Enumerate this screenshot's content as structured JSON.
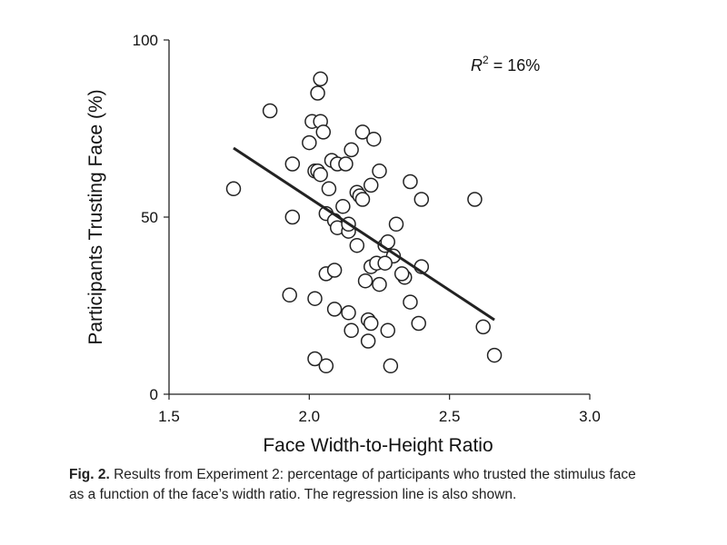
{
  "chart_data": {
    "type": "scatter",
    "xlabel": "Face Width-to-Height Ratio",
    "ylabel": "Participants Trusting Face (%)",
    "xlim": [
      1.5,
      3.0
    ],
    "ylim": [
      0,
      100
    ],
    "xticks": [
      "1.5",
      "2.0",
      "2.5",
      "3.0"
    ],
    "xtick_values": [
      1.5,
      2.0,
      2.5,
      3.0
    ],
    "yticks": [
      "0",
      "50",
      "100"
    ],
    "ytick_values": [
      0,
      50,
      100
    ],
    "annotation": {
      "prefix": "R",
      "sup": "2",
      "suffix": " = 16%"
    },
    "regression": {
      "x": [
        1.73,
        2.66
      ],
      "y": [
        69.5,
        21.0
      ]
    },
    "points": [
      [
        1.73,
        58
      ],
      [
        1.86,
        80
      ],
      [
        1.94,
        65
      ],
      [
        1.94,
        50
      ],
      [
        1.93,
        28
      ],
      [
        2.0,
        71
      ],
      [
        2.01,
        77
      ],
      [
        2.02,
        63
      ],
      [
        2.03,
        85
      ],
      [
        2.04,
        89
      ],
      [
        2.04,
        77
      ],
      [
        2.05,
        74
      ],
      [
        2.03,
        63
      ],
      [
        2.04,
        62
      ],
      [
        2.07,
        58
      ],
      [
        2.08,
        66
      ],
      [
        2.1,
        65
      ],
      [
        2.13,
        65
      ],
      [
        2.15,
        69
      ],
      [
        2.19,
        74
      ],
      [
        2.23,
        72
      ],
      [
        2.25,
        63
      ],
      [
        2.17,
        57
      ],
      [
        2.18,
        56
      ],
      [
        2.19,
        55
      ],
      [
        2.22,
        59
      ],
      [
        2.36,
        60
      ],
      [
        2.4,
        55
      ],
      [
        2.59,
        55
      ],
      [
        2.06,
        51
      ],
      [
        2.09,
        49
      ],
      [
        2.1,
        47
      ],
      [
        2.12,
        53
      ],
      [
        2.14,
        46
      ],
      [
        2.14,
        48
      ],
      [
        2.17,
        42
      ],
      [
        2.27,
        42
      ],
      [
        2.28,
        43
      ],
      [
        2.3,
        39
      ],
      [
        2.31,
        48
      ],
      [
        2.22,
        36
      ],
      [
        2.24,
        37
      ],
      [
        2.27,
        37
      ],
      [
        2.34,
        33
      ],
      [
        2.33,
        34
      ],
      [
        2.4,
        36
      ],
      [
        2.06,
        34
      ],
      [
        2.09,
        35
      ],
      [
        2.2,
        32
      ],
      [
        2.25,
        31
      ],
      [
        2.02,
        27
      ],
      [
        2.09,
        24
      ],
      [
        2.14,
        23
      ],
      [
        2.15,
        18
      ],
      [
        2.21,
        21
      ],
      [
        2.22,
        20
      ],
      [
        2.21,
        15
      ],
      [
        2.28,
        18
      ],
      [
        2.36,
        26
      ],
      [
        2.39,
        20
      ],
      [
        2.02,
        10
      ],
      [
        2.06,
        8
      ],
      [
        2.29,
        8
      ],
      [
        2.62,
        19
      ],
      [
        2.66,
        11
      ]
    ]
  },
  "caption": {
    "label": "Fig. 2.",
    "text": " Results from Experiment 2: percentage of participants who trusted the stimulus face as a function of the face’s width ratio. The regression line is also shown."
  }
}
